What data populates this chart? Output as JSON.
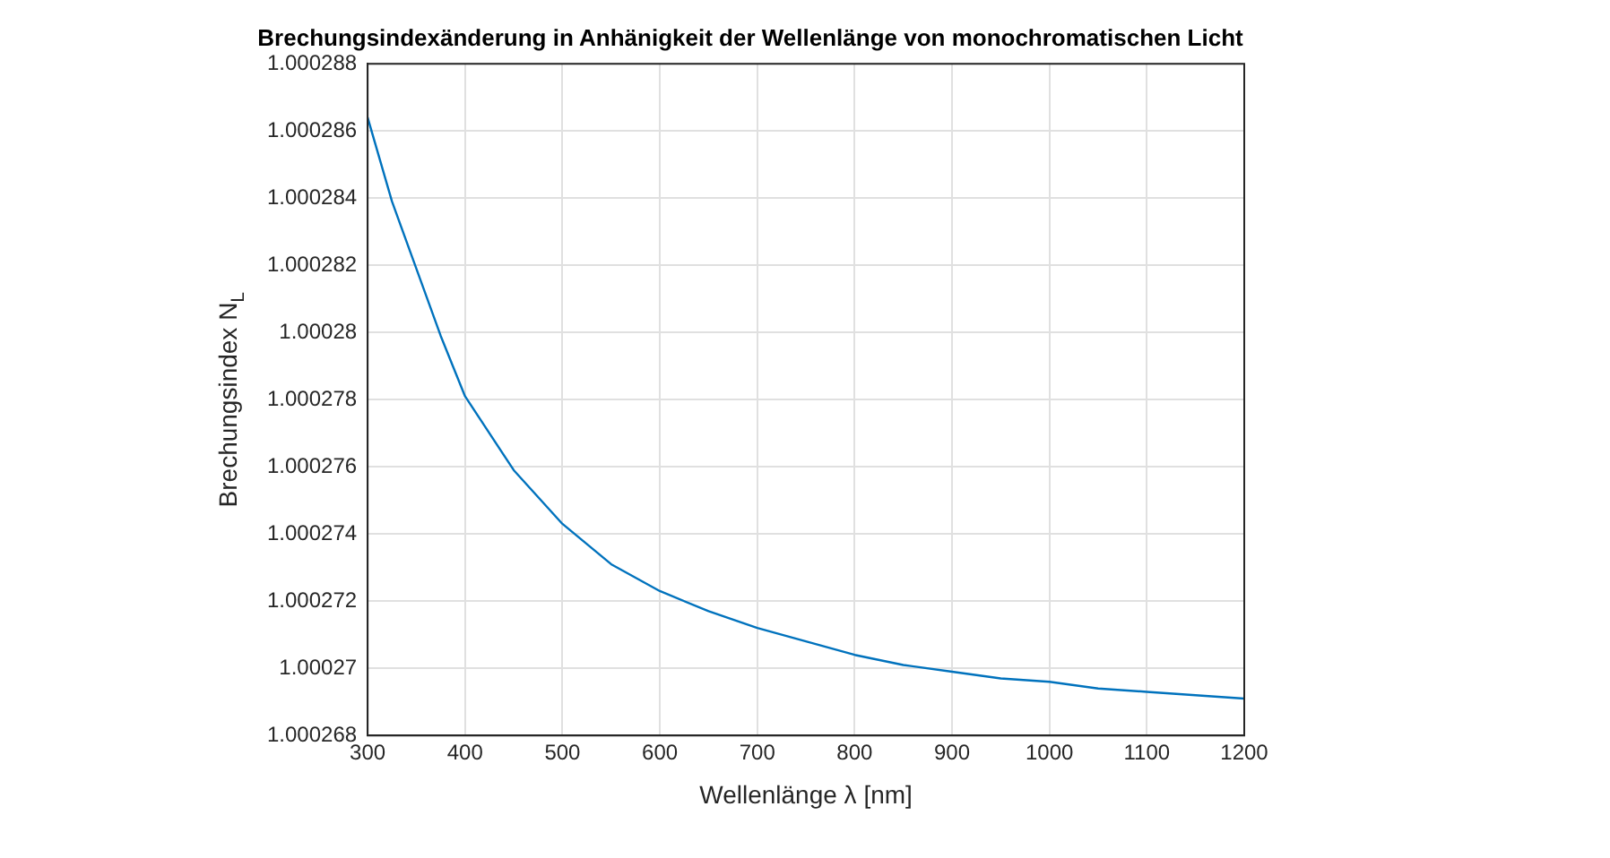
{
  "chart_data": {
    "type": "line",
    "title": "Brechungsindexänderung in Anhänigkeit der Wellenlänge von monochromatischen Licht",
    "xlabel": "Wellenlänge λ [nm]",
    "ylabel": "Brechungsindex N$_{L}$",
    "x": [
      300,
      325,
      350,
      375,
      400,
      450,
      500,
      550,
      600,
      650,
      700,
      750,
      800,
      850,
      900,
      950,
      1000,
      1050,
      1100,
      1150,
      1200
    ],
    "series": [
      {
        "color": "#0072bd",
        "values": [
          1.0002864,
          1.0002839,
          1.0002819,
          1.0002799,
          1.0002781,
          1.0002759,
          1.0002743,
          1.0002731,
          1.0002723,
          1.0002717,
          1.0002712,
          1.0002708,
          1.0002704,
          1.0002701,
          1.0002699,
          1.0002697,
          1.0002696,
          1.0002694,
          1.0002693,
          1.0002692,
          1.0002691
        ]
      }
    ],
    "xlim": [
      300,
      1200
    ],
    "xticks": [
      300,
      400,
      500,
      600,
      700,
      800,
      900,
      1000,
      1100,
      1200
    ],
    "ylim": [
      1.000268,
      1.000288
    ],
    "yticks": [
      1.000268,
      1.00027,
      1.000272,
      1.000274,
      1.000276,
      1.000278,
      1.00028,
      1.000282,
      1.000284,
      1.000286,
      1.000288
    ],
    "grid": true,
    "legend": false,
    "marker": "none",
    "line_style": "solid"
  }
}
